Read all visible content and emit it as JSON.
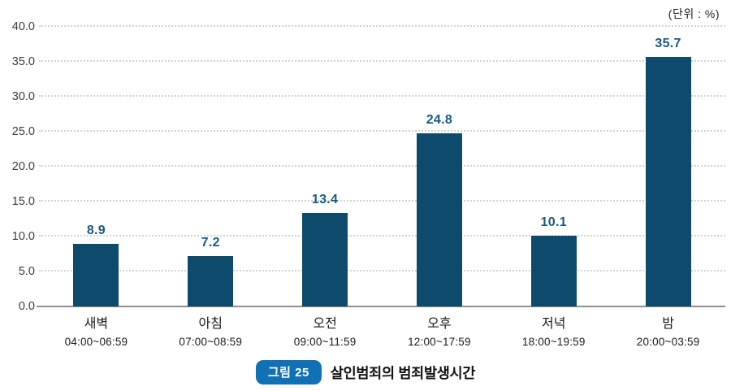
{
  "unit_label": "(단위 : %)",
  "caption": {
    "badge": "그림 25",
    "title": "살인범죄의 범죄발생시간"
  },
  "colors": {
    "bar": "#0d4a6c",
    "value_label": "#175a82",
    "badge_background": "#1171b5",
    "gridline": "#d2d2d2",
    "axis_line": "#8f8f8f"
  },
  "chart_data": {
    "type": "bar",
    "title": "살인범죄의 범죄발생시간",
    "unit": "%",
    "categories": [
      "새벽",
      "아침",
      "오전",
      "오후",
      "저녁",
      "밤"
    ],
    "category_sublabels": [
      "04:00~06:59",
      "07:00~08:59",
      "09:00~11:59",
      "12:00~17:59",
      "18:00~19:59",
      "20:00~03:59"
    ],
    "values": [
      8.9,
      7.2,
      13.4,
      24.8,
      10.1,
      35.7
    ],
    "value_labels": [
      "8.9",
      "7.2",
      "13.4",
      "24.8",
      "10.1",
      "35.7"
    ],
    "xlabel": "",
    "ylabel": "",
    "ylim": [
      0,
      40
    ],
    "ytick_step": 5,
    "yticks": [
      "0.0",
      "5.0",
      "10.0",
      "15.0",
      "20.0",
      "25.0",
      "30.0",
      "35.0",
      "40.0"
    ],
    "grid": "horizontal-dotted",
    "legend": "none"
  }
}
